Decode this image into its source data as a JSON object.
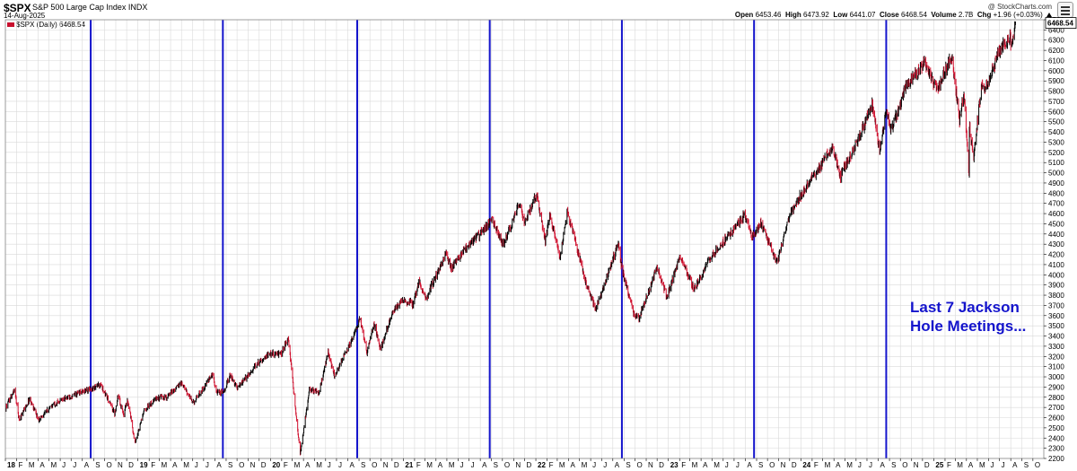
{
  "header": {
    "symbol": "$SPX",
    "name": "S&P 500 Large Cap Index INDX",
    "date": "14-Aug-2025",
    "credit": "@ StockCharts.com",
    "open_label": "Open",
    "open": "6453.46",
    "high_label": "High",
    "high": "6473.92",
    "low_label": "Low",
    "low": "6441.07",
    "close_label": "Close",
    "close": "6468.54",
    "volume_label": "Volume",
    "volume": "2.7B",
    "chg_label": "Chg",
    "chg": "+1.96 (+0.03%)"
  },
  "legend": {
    "text": "$SPX (Daily) 6468.54",
    "color": "#c8102e"
  },
  "annotation": {
    "line1": "Last 7 Jackson",
    "line2": "Hole Meetings..."
  },
  "colors": {
    "up": "#000000",
    "down": "#d0102e",
    "marker": "#1414cc",
    "grid": "#d9d9d9",
    "last_price_bg": "#ffffff"
  },
  "chart_data": {
    "type": "line",
    "title": "",
    "xlabel": "",
    "ylabel": "",
    "x_range": [
      "2018-01-01",
      "2025-10-31"
    ],
    "ylim": [
      2200,
      6500
    ],
    "y_ticks": [
      2200,
      2300,
      2400,
      2500,
      2600,
      2700,
      2800,
      2900,
      3000,
      3100,
      3200,
      3300,
      3400,
      3500,
      3600,
      3700,
      3800,
      3900,
      4000,
      4100,
      4200,
      4300,
      4400,
      4500,
      4600,
      4700,
      4800,
      4900,
      5000,
      5100,
      5200,
      5300,
      5400,
      5500,
      5600,
      5700,
      5800,
      5900,
      6000,
      6100,
      6200,
      6300,
      6400,
      6500
    ],
    "month_labels": [
      {
        "date": "2018-01-01",
        "label": "18",
        "year": true
      },
      {
        "date": "2018-02-01",
        "label": "F"
      },
      {
        "date": "2018-03-01",
        "label": "M"
      },
      {
        "date": "2018-04-01",
        "label": "A"
      },
      {
        "date": "2018-05-01",
        "label": "M"
      },
      {
        "date": "2018-06-01",
        "label": "J"
      },
      {
        "date": "2018-07-01",
        "label": "J"
      },
      {
        "date": "2018-08-01",
        "label": "A"
      },
      {
        "date": "2018-09-01",
        "label": "S"
      },
      {
        "date": "2018-10-01",
        "label": "O"
      },
      {
        "date": "2018-11-01",
        "label": "N"
      },
      {
        "date": "2018-12-01",
        "label": "D"
      },
      {
        "date": "2019-01-01",
        "label": "19",
        "year": true
      },
      {
        "date": "2019-02-01",
        "label": "F"
      },
      {
        "date": "2019-03-01",
        "label": "M"
      },
      {
        "date": "2019-04-01",
        "label": "A"
      },
      {
        "date": "2019-05-01",
        "label": "M"
      },
      {
        "date": "2019-06-01",
        "label": "J"
      },
      {
        "date": "2019-07-01",
        "label": "J"
      },
      {
        "date": "2019-08-01",
        "label": "A"
      },
      {
        "date": "2019-09-01",
        "label": "S"
      },
      {
        "date": "2019-10-01",
        "label": "O"
      },
      {
        "date": "2019-11-01",
        "label": "N"
      },
      {
        "date": "2019-12-01",
        "label": "D"
      },
      {
        "date": "2020-01-01",
        "label": "20",
        "year": true
      },
      {
        "date": "2020-02-01",
        "label": "F"
      },
      {
        "date": "2020-03-01",
        "label": "M"
      },
      {
        "date": "2020-04-01",
        "label": "A"
      },
      {
        "date": "2020-05-01",
        "label": "M"
      },
      {
        "date": "2020-06-01",
        "label": "J"
      },
      {
        "date": "2020-07-01",
        "label": "J"
      },
      {
        "date": "2020-08-01",
        "label": "A"
      },
      {
        "date": "2020-09-01",
        "label": "S"
      },
      {
        "date": "2020-10-01",
        "label": "O"
      },
      {
        "date": "2020-11-01",
        "label": "N"
      },
      {
        "date": "2020-12-01",
        "label": "D"
      },
      {
        "date": "2021-01-01",
        "label": "21",
        "year": true
      },
      {
        "date": "2021-02-01",
        "label": "F"
      },
      {
        "date": "2021-03-01",
        "label": "M"
      },
      {
        "date": "2021-04-01",
        "label": "A"
      },
      {
        "date": "2021-05-01",
        "label": "M"
      },
      {
        "date": "2021-06-01",
        "label": "J"
      },
      {
        "date": "2021-07-01",
        "label": "J"
      },
      {
        "date": "2021-08-01",
        "label": "A"
      },
      {
        "date": "2021-09-01",
        "label": "S"
      },
      {
        "date": "2021-10-01",
        "label": "O"
      },
      {
        "date": "2021-11-01",
        "label": "N"
      },
      {
        "date": "2021-12-01",
        "label": "D"
      },
      {
        "date": "2022-01-01",
        "label": "22",
        "year": true
      },
      {
        "date": "2022-02-01",
        "label": "F"
      },
      {
        "date": "2022-03-01",
        "label": "M"
      },
      {
        "date": "2022-04-01",
        "label": "A"
      },
      {
        "date": "2022-05-01",
        "label": "M"
      },
      {
        "date": "2022-06-01",
        "label": "J"
      },
      {
        "date": "2022-07-01",
        "label": "J"
      },
      {
        "date": "2022-08-01",
        "label": "A"
      },
      {
        "date": "2022-09-01",
        "label": "S"
      },
      {
        "date": "2022-10-01",
        "label": "O"
      },
      {
        "date": "2022-11-01",
        "label": "N"
      },
      {
        "date": "2022-12-01",
        "label": "D"
      },
      {
        "date": "2023-01-01",
        "label": "23",
        "year": true
      },
      {
        "date": "2023-02-01",
        "label": "F"
      },
      {
        "date": "2023-03-01",
        "label": "M"
      },
      {
        "date": "2023-04-01",
        "label": "A"
      },
      {
        "date": "2023-05-01",
        "label": "M"
      },
      {
        "date": "2023-06-01",
        "label": "J"
      },
      {
        "date": "2023-07-01",
        "label": "J"
      },
      {
        "date": "2023-08-01",
        "label": "A"
      },
      {
        "date": "2023-09-01",
        "label": "S"
      },
      {
        "date": "2023-10-01",
        "label": "O"
      },
      {
        "date": "2023-11-01",
        "label": "N"
      },
      {
        "date": "2023-12-01",
        "label": "D"
      },
      {
        "date": "2024-01-01",
        "label": "24",
        "year": true
      },
      {
        "date": "2024-02-01",
        "label": "F"
      },
      {
        "date": "2024-03-01",
        "label": "M"
      },
      {
        "date": "2024-04-01",
        "label": "A"
      },
      {
        "date": "2024-05-01",
        "label": "M"
      },
      {
        "date": "2024-06-01",
        "label": "J"
      },
      {
        "date": "2024-07-01",
        "label": "J"
      },
      {
        "date": "2024-08-01",
        "label": "A"
      },
      {
        "date": "2024-09-01",
        "label": "S"
      },
      {
        "date": "2024-10-01",
        "label": "O"
      },
      {
        "date": "2024-11-01",
        "label": "N"
      },
      {
        "date": "2024-12-01",
        "label": "D"
      },
      {
        "date": "2025-01-01",
        "label": "25",
        "year": true
      },
      {
        "date": "2025-02-01",
        "label": "F"
      },
      {
        "date": "2025-03-01",
        "label": "M"
      },
      {
        "date": "2025-04-01",
        "label": "A"
      },
      {
        "date": "2025-05-01",
        "label": "M"
      },
      {
        "date": "2025-06-01",
        "label": "J"
      },
      {
        "date": "2025-07-01",
        "label": "J"
      },
      {
        "date": "2025-08-01",
        "label": "A"
      },
      {
        "date": "2025-09-01",
        "label": "S"
      },
      {
        "date": "2025-10-01",
        "label": "O"
      }
    ],
    "jackson_hole_dates": [
      "2018-08-24",
      "2019-08-23",
      "2020-08-27",
      "2021-08-27",
      "2022-08-26",
      "2023-08-25",
      "2024-08-23"
    ],
    "last_price": "6468.54",
    "series": [
      {
        "values": [
          [
            "2018-01-02",
            2695
          ],
          [
            "2018-01-26",
            2872
          ],
          [
            "2018-02-08",
            2581
          ],
          [
            "2018-03-09",
            2786
          ],
          [
            "2018-04-02",
            2582
          ],
          [
            "2018-05-14",
            2730
          ],
          [
            "2018-06-12",
            2786
          ],
          [
            "2018-07-25",
            2846
          ],
          [
            "2018-08-24",
            2875
          ],
          [
            "2018-09-20",
            2930
          ],
          [
            "2018-10-29",
            2641
          ],
          [
            "2018-11-07",
            2813
          ],
          [
            "2018-11-23",
            2632
          ],
          [
            "2018-12-03",
            2790
          ],
          [
            "2018-12-24",
            2351
          ],
          [
            "2019-01-18",
            2670
          ],
          [
            "2019-02-22",
            2792
          ],
          [
            "2019-03-22",
            2800
          ],
          [
            "2019-04-30",
            2945
          ],
          [
            "2019-06-03",
            2744
          ],
          [
            "2019-07-26",
            3025
          ],
          [
            "2019-08-05",
            2844
          ],
          [
            "2019-08-23",
            2847
          ],
          [
            "2019-09-12",
            3009
          ],
          [
            "2019-10-02",
            2887
          ],
          [
            "2019-11-29",
            3140
          ],
          [
            "2019-12-31",
            3230
          ],
          [
            "2020-01-31",
            3225
          ],
          [
            "2020-02-19",
            3386
          ],
          [
            "2020-03-23",
            2237
          ],
          [
            "2020-04-17",
            2875
          ],
          [
            "2020-05-14",
            2852
          ],
          [
            "2020-06-08",
            3232
          ],
          [
            "2020-06-26",
            3009
          ],
          [
            "2020-07-31",
            3271
          ],
          [
            "2020-08-27",
            3484
          ],
          [
            "2020-09-02",
            3580
          ],
          [
            "2020-09-23",
            3237
          ],
          [
            "2020-10-12",
            3534
          ],
          [
            "2020-10-30",
            3270
          ],
          [
            "2020-11-30",
            3621
          ],
          [
            "2020-12-31",
            3756
          ],
          [
            "2021-01-29",
            3714
          ],
          [
            "2021-02-12",
            3934
          ],
          [
            "2021-03-04",
            3768
          ],
          [
            "2021-04-29",
            4211
          ],
          [
            "2021-05-12",
            4063
          ],
          [
            "2021-06-30",
            4297
          ],
          [
            "2021-07-30",
            4395
          ],
          [
            "2021-08-27",
            4509
          ],
          [
            "2021-09-02",
            4537
          ],
          [
            "2021-10-04",
            4300
          ],
          [
            "2021-11-18",
            4704
          ],
          [
            "2021-12-01",
            4513
          ],
          [
            "2022-01-03",
            4796
          ],
          [
            "2022-01-27",
            4326
          ],
          [
            "2022-02-09",
            4587
          ],
          [
            "2022-03-08",
            4170
          ],
          [
            "2022-03-29",
            4631
          ],
          [
            "2022-05-20",
            3900
          ],
          [
            "2022-06-16",
            3666
          ],
          [
            "2022-08-16",
            4305
          ],
          [
            "2022-08-26",
            4057
          ],
          [
            "2022-09-30",
            3585
          ],
          [
            "2022-10-12",
            3577
          ],
          [
            "2022-12-01",
            4076
          ],
          [
            "2022-12-28",
            3783
          ],
          [
            "2023-02-02",
            4179
          ],
          [
            "2023-03-13",
            3855
          ],
          [
            "2023-04-28",
            4169
          ],
          [
            "2023-06-30",
            4450
          ],
          [
            "2023-07-31",
            4589
          ],
          [
            "2023-08-18",
            4370
          ],
          [
            "2023-08-25",
            4406
          ],
          [
            "2023-09-14",
            4505
          ],
          [
            "2023-10-27",
            4117
          ],
          [
            "2023-11-30",
            4568
          ],
          [
            "2023-12-29",
            4770
          ],
          [
            "2024-02-29",
            5096
          ],
          [
            "2024-03-28",
            5254
          ],
          [
            "2024-04-19",
            4967
          ],
          [
            "2024-05-31",
            5278
          ],
          [
            "2024-07-16",
            5667
          ],
          [
            "2024-08-05",
            5186
          ],
          [
            "2024-08-23",
            5635
          ],
          [
            "2024-09-06",
            5408
          ],
          [
            "2024-10-18",
            5865
          ],
          [
            "2024-11-29",
            6032
          ],
          [
            "2024-12-06",
            6090
          ],
          [
            "2024-12-31",
            5882
          ],
          [
            "2025-01-13",
            5836
          ],
          [
            "2025-02-19",
            6144
          ],
          [
            "2025-03-13",
            5521
          ],
          [
            "2025-03-25",
            5776
          ],
          [
            "2025-04-08",
            4982
          ],
          [
            "2025-04-09",
            5456
          ],
          [
            "2025-04-21",
            5158
          ],
          [
            "2025-05-13",
            5886
          ],
          [
            "2025-05-23",
            5802
          ],
          [
            "2025-06-27",
            6173
          ],
          [
            "2025-07-31",
            6339
          ],
          [
            "2025-08-01",
            6238
          ],
          [
            "2025-08-14",
            6468
          ]
        ]
      }
    ]
  }
}
